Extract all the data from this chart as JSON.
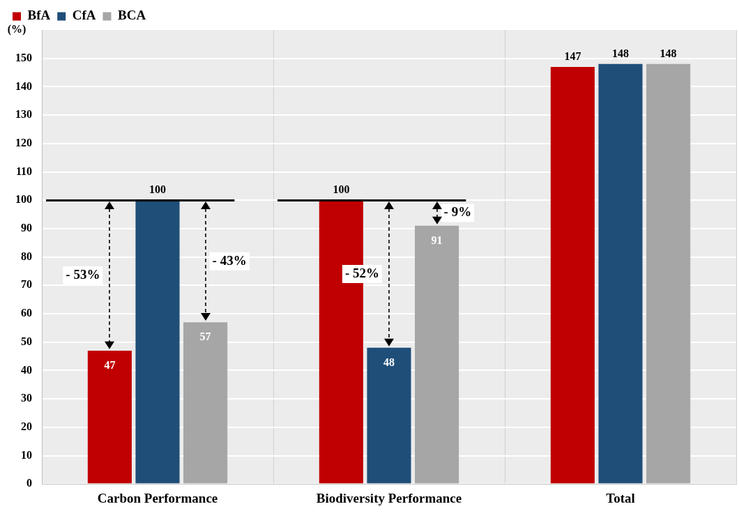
{
  "chart_data": {
    "type": "bar",
    "ylabel": "(%)",
    "categories": [
      "Carbon Performance",
      "Biodiversity Performance",
      "Total"
    ],
    "series": [
      {
        "name": "BfA",
        "color": "#c00000",
        "values": [
          47,
          100,
          147
        ]
      },
      {
        "name": "CfA",
        "color": "#1f4e79",
        "values": [
          100,
          48,
          148
        ]
      },
      {
        "name": "BCA",
        "color": "#a6a6a6",
        "values": [
          57,
          91,
          148
        ]
      }
    ],
    "ylim": [
      0,
      160
    ],
    "yticks": [
      0,
      10,
      20,
      30,
      40,
      50,
      60,
      70,
      80,
      90,
      100,
      110,
      120,
      130,
      140,
      150
    ],
    "grid": true,
    "legend": "top left",
    "data_labels": true,
    "annotations": [
      "- 53%",
      "- 43%",
      "- 52%",
      "- 9%"
    ]
  }
}
